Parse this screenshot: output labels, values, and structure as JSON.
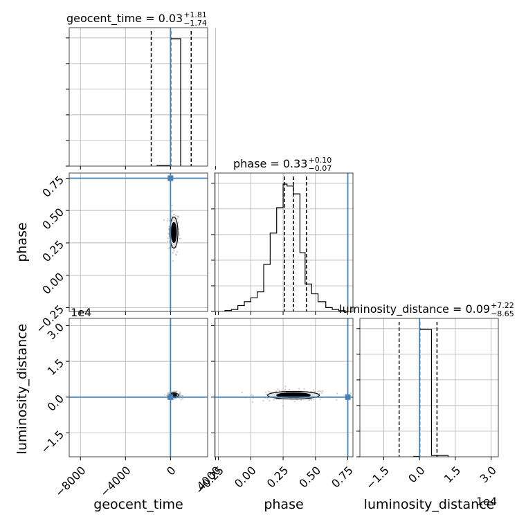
{
  "chart_data": {
    "type": "corner",
    "parameters": [
      "geocent_time",
      "phase",
      "luminosity_distance"
    ],
    "truths": {
      "geocent_time": 0,
      "phase": 0.75,
      "luminosity_distance": 0
    },
    "truth_color": "#4682b4",
    "grid": true,
    "titles": [
      {
        "param": "geocent_time",
        "text": "geocent_time = 0.03",
        "sup": "+1.81",
        "sub": "−1.74"
      },
      {
        "param": "phase",
        "text": "phase = 0.33",
        "sup": "+0.10",
        "sub": "−0.07"
      },
      {
        "param": "luminosity_distance",
        "text": "luminosity_distance = 0.09",
        "sup": "+7.22",
        "sub": "−8.65"
      }
    ],
    "axis_labels": {
      "geocent_time": "geocent_time",
      "phase": "phase",
      "luminosity_distance": "luminosity_distance"
    },
    "ranges": {
      "geocent_time": [
        -9000,
        3300
      ],
      "phase": [
        -0.28,
        0.79
      ],
      "luminosity_distance": [
        -25000,
        33000
      ]
    },
    "ticks": {
      "geocent_time": {
        "values": [
          -8000,
          -4000,
          0,
          4000
        ],
        "labels": [
          "−8000",
          "−4000",
          "0",
          "4000"
        ]
      },
      "phase": {
        "values": [
          -0.25,
          0.0,
          0.25,
          0.5,
          0.75
        ],
        "labels": [
          "−0.25",
          "0.00",
          "0.25",
          "0.50",
          "0.75"
        ]
      },
      "luminosity_distance": {
        "values": [
          -15000,
          0,
          15000,
          30000
        ],
        "labels": [
          "−1.5",
          "0.0",
          "1.5",
          "3.0"
        ]
      }
    },
    "offset_text": {
      "luminosity_distance": "1e4"
    },
    "quantiles": {
      "geocent_time": [
        -1710,
        30,
        1840
      ],
      "phase": [
        0.26,
        0.33,
        0.43
      ],
      "luminosity_distance": [
        -8560,
        90,
        7310
      ]
    },
    "histograms": {
      "geocent_time": {
        "edges": [
          -1200,
          0,
          900
        ],
        "counts": [
          0.5,
          98
        ]
      },
      "phase": {
        "edges": [
          -0.2,
          -0.15,
          -0.1,
          -0.05,
          0.0,
          0.05,
          0.1,
          0.15,
          0.2,
          0.25,
          0.28,
          0.33,
          0.38,
          0.42,
          0.47,
          0.52,
          0.58,
          0.63,
          0.68,
          0.73
        ],
        "counts": [
          0.5,
          1,
          3,
          5,
          7,
          10,
          24,
          40,
          53,
          65,
          64,
          60,
          30,
          14,
          9,
          5,
          2,
          1,
          0.4
        ]
      },
      "luminosity_distance": {
        "edges": [
          -2500,
          0,
          5000,
          12000
        ],
        "counts": [
          0.3,
          98,
          1
        ]
      }
    },
    "pairs": [
      {
        "x": "geocent_time",
        "y": "phase",
        "center": [
          300,
          0.33
        ],
        "spread": [
          180,
          0.06
        ]
      },
      {
        "x": "geocent_time",
        "y": "luminosity_distance",
        "center": [
          300,
          800
        ],
        "spread": [
          200,
          500
        ]
      },
      {
        "x": "phase",
        "y": "luminosity_distance",
        "center": [
          0.33,
          800
        ],
        "spread": [
          0.1,
          800
        ]
      }
    ]
  }
}
